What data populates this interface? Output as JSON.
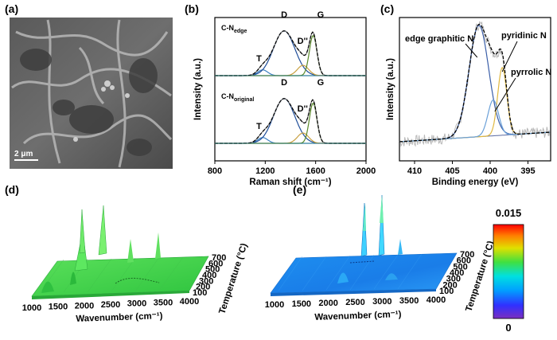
{
  "figure": {
    "panels": {
      "a": {
        "label": "(a)",
        "scale_bar": "2 μm"
      },
      "b": {
        "label": "(b)",
        "trace_top_label": "C-N",
        "trace_top_sub": "edge",
        "trace_bottom_label": "C-N",
        "trace_bottom_sub": "original"
      },
      "c": {
        "label": "(c)"
      },
      "d": {
        "label": "(d)"
      },
      "e": {
        "label": "(e)"
      }
    },
    "colorbar": {
      "max_label": "0.015",
      "min_label": "0",
      "colors": [
        "#7B2FBF",
        "#3030FF",
        "#00A0FF",
        "#00E0E0",
        "#40E040",
        "#E0E000",
        "#FF8000",
        "#FF0000"
      ]
    }
  },
  "chart_data": [
    {
      "panel": "b",
      "type": "line",
      "title": "",
      "xlabel": "Raman shift (cm⁻¹)",
      "ylabel": "Intensity (a.u.)",
      "xlim": [
        800,
        2000
      ],
      "x_ticks": [
        "800",
        "1200",
        "1600",
        "2000"
      ],
      "peak_labels": [
        "T",
        "D",
        "D''",
        "G"
      ],
      "peaks_cm": {
        "T": 1180,
        "D": 1350,
        "D''": 1500,
        "G": 1580
      },
      "series_colors": {
        "measured": "#000000",
        "fit": "#888888",
        "D": "#1f4e9a",
        "G": "#5a8a2a",
        "T": "#3a7fc0",
        "D''": "#c8a040"
      }
    },
    {
      "panel": "c",
      "type": "line",
      "xlabel": "Binding energy (eV)",
      "ylabel": "Intensity (a.u.)",
      "xlim": [
        412,
        392
      ],
      "x_ticks": [
        "410",
        "405",
        "400",
        "395"
      ],
      "annotations": [
        "edge graphitic N",
        "pyridinic N",
        "pyrrolic N"
      ],
      "peaks_eV": {
        "edge graphitic N": 401.5,
        "pyridinic N": 398.4,
        "pyrrolic N": 399.6
      }
    },
    {
      "panel": "d",
      "type": "surface",
      "xlabel": "Wavenumber (cm⁻¹)",
      "ylabel": "Temperature (°C)",
      "x_ticks": [
        "1000",
        "1500",
        "2000",
        "2500",
        "3000",
        "3500",
        "4000"
      ],
      "y_ticks": [
        "100",
        "200",
        "300",
        "400",
        "500",
        "600",
        "700"
      ]
    },
    {
      "panel": "e",
      "type": "surface",
      "xlabel": "Wavenumber (cm⁻¹)",
      "ylabel": "Temperature (°C)",
      "x_ticks": [
        "1000",
        "1500",
        "2000",
        "2500",
        "3000",
        "3500",
        "4000"
      ],
      "y_ticks": [
        "100",
        "200",
        "300",
        "400",
        "500",
        "600",
        "700"
      ],
      "zlim": [
        0,
        0.015
      ]
    }
  ]
}
